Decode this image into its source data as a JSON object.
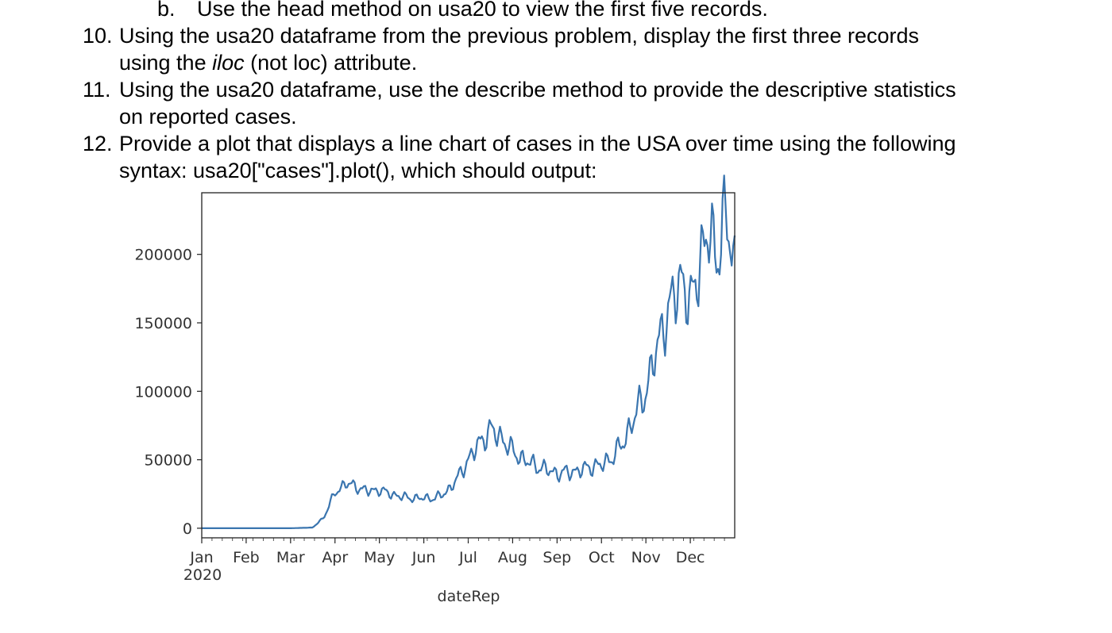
{
  "doc": {
    "item_b_marker": "b.",
    "item_b_text": "Use the head method on usa20 to view the first five records.",
    "items": [
      {
        "number": "10.",
        "line1": "Using the usa20 dataframe from the previous problem, display the first three records",
        "line2_pre": "using the ",
        "line2_em": "iloc",
        "line2_post": " (not loc) attribute."
      },
      {
        "number": "11.",
        "line1": "Using the usa20 dataframe, use the describe method to provide the descriptive statistics",
        "line2": "on reported cases."
      },
      {
        "number": "12.",
        "line1": "Provide a plot that displays a line chart of cases in the USA over time using the following",
        "line2": "syntax: usa20[\"cases\"].plot(), which should output:"
      }
    ]
  },
  "chart_data": {
    "type": "line",
    "title": "",
    "xlabel": "dateRep",
    "ylabel": "",
    "x_tick_labels": [
      "Jan",
      "Feb",
      "Mar",
      "Apr",
      "May",
      "Jun",
      "Jul",
      "Aug",
      "Sep",
      "Oct",
      "Nov",
      "Dec"
    ],
    "x_tick_year": "2020",
    "y_ticks": [
      0,
      50000,
      100000,
      150000,
      200000
    ],
    "ylim": [
      -7000,
      245000
    ],
    "xlim_months": [
      0,
      12
    ],
    "grid": false,
    "legend": "none",
    "line_color": "#3a75af",
    "series": [
      {
        "x_month": [
          0,
          1,
          2,
          2.5,
          2.75,
          3.0,
          3.25,
          3.5,
          3.75,
          4.0,
          4.25,
          4.5,
          4.75,
          5.0,
          5.25,
          5.5,
          5.75,
          6.0,
          6.25,
          6.5,
          6.75,
          7.0,
          7.25,
          7.5,
          7.75,
          8.0,
          8.25,
          8.5,
          8.75,
          9.0,
          9.25,
          9.5,
          9.75,
          10.0,
          10.2,
          10.4,
          10.6,
          10.8,
          11.0,
          11.2,
          11.4,
          11.6,
          11.8,
          12.0
        ],
        "values": [
          0,
          0,
          0,
          500,
          8000,
          26000,
          33000,
          30000,
          27000,
          28000,
          25000,
          23000,
          22000,
          22000,
          22000,
          26000,
          36000,
          50000,
          62000,
          72000,
          66000,
          56000,
          50000,
          46000,
          43000,
          40000,
          41000,
          42000,
          45000,
          46000,
          52000,
          63000,
          82000,
          100000,
          125000,
          150000,
          165000,
          185000,
          160000,
          195000,
          215000,
          200000,
          228000,
          190000
        ]
      }
    ]
  }
}
